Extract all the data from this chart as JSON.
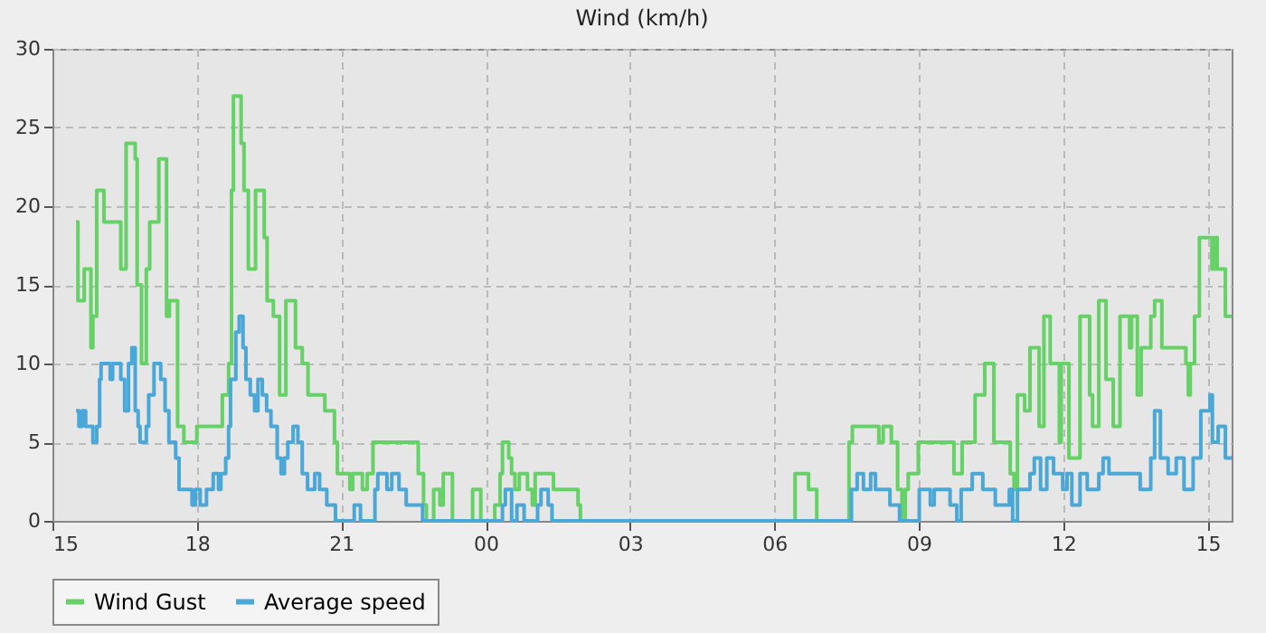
{
  "chart_data": {
    "type": "step",
    "title": "Wind (km/h)",
    "xlim": [
      15,
      39.5
    ],
    "ylim": [
      0,
      30
    ],
    "yticks": [
      0,
      5,
      10,
      15,
      20,
      25,
      30
    ],
    "xticks": [
      {
        "value": 15,
        "label": "15"
      },
      {
        "value": 18,
        "label": "18"
      },
      {
        "value": 21,
        "label": "21"
      },
      {
        "value": 24,
        "label": "00"
      },
      {
        "value": 27,
        "label": "03"
      },
      {
        "value": 30,
        "label": "06"
      },
      {
        "value": 33,
        "label": "09"
      },
      {
        "value": 36,
        "label": "12"
      },
      {
        "value": 39,
        "label": "15"
      }
    ],
    "grid": true,
    "legend": "bottom",
    "line_style": "solid",
    "marker": "none",
    "series": [
      {
        "name": "Wind Gust",
        "color": "#66d166",
        "x": [
          15.49,
          15.53,
          15.66,
          15.8,
          15.84,
          15.92,
          16.07,
          16.42,
          16.53,
          16.72,
          16.76,
          16.85,
          16.95,
          17.02,
          17.21,
          17.37,
          17.43,
          17.6,
          17.73,
          18.0,
          18.53,
          18.66,
          18.72,
          18.76,
          18.92,
          18.98,
          19.07,
          19.22,
          19.4,
          19.46,
          19.59,
          19.72,
          19.85,
          20.05,
          20.19,
          20.31,
          20.66,
          20.86,
          20.92,
          21.18,
          21.24,
          21.44,
          21.54,
          21.66,
          22.6,
          22.71,
          22.77,
          22.92,
          23.05,
          23.12,
          23.31,
          23.73,
          23.9,
          24.19,
          24.3,
          24.35,
          24.48,
          24.54,
          24.61,
          24.7,
          24.87,
          24.97,
          25.03,
          25.41,
          25.92,
          25.97,
          30.43,
          30.71,
          30.88,
          31.55,
          31.62,
          32.17,
          32.26,
          32.43,
          32.56,
          32.65,
          32.72,
          32.78,
          32.99,
          33.73,
          33.9,
          34.17,
          34.37,
          34.56,
          34.9,
          34.98,
          35.05,
          35.2,
          35.31,
          35.5,
          35.6,
          35.73,
          35.92,
          35.96,
          36.12,
          36.35,
          36.55,
          36.61,
          36.74,
          36.89,
          37.04,
          37.18,
          37.38,
          37.42,
          37.54,
          37.62,
          37.82,
          37.9,
          38.05,
          38.55,
          38.6,
          38.64,
          38.73,
          38.83,
          39.09,
          39.15,
          39.2,
          39.37,
          39.5
        ],
        "values": [
          19,
          14,
          16,
          11,
          13,
          21,
          19,
          16,
          24,
          23,
          15,
          10,
          16,
          19,
          23,
          13,
          14,
          6,
          5,
          6,
          8,
          10,
          21,
          27,
          24,
          21,
          16,
          21,
          18,
          14,
          13,
          8,
          14,
          11,
          10,
          8,
          7,
          5,
          3,
          2,
          3,
          2,
          3,
          5,
          3,
          1,
          0,
          2,
          1,
          3,
          0,
          2,
          0,
          1,
          3,
          5,
          4,
          3,
          2,
          3,
          2,
          1,
          3,
          2,
          1,
          0,
          3,
          2,
          0,
          5,
          6,
          5,
          6,
          5,
          2,
          0,
          2,
          3,
          5,
          3,
          5,
          8,
          10,
          5,
          3,
          2,
          8,
          7,
          11,
          6,
          13,
          10,
          5,
          10,
          4,
          13,
          8,
          6,
          14,
          9,
          6,
          13,
          11,
          13,
          8,
          11,
          13,
          14,
          11,
          10,
          8,
          10,
          13,
          18,
          16,
          18,
          16,
          13,
          13
        ]
      },
      {
        "name": "Average speed",
        "color": "#4aa8d8",
        "x": [
          15.49,
          15.55,
          15.62,
          15.69,
          15.84,
          15.92,
          15.98,
          16.01,
          16.2,
          16.25,
          16.42,
          16.5,
          16.58,
          16.65,
          16.72,
          16.78,
          16.82,
          16.95,
          17.0,
          17.11,
          17.25,
          17.34,
          17.42,
          17.56,
          17.63,
          17.9,
          17.97,
          18.07,
          18.2,
          18.34,
          18.45,
          18.5,
          18.6,
          18.66,
          18.7,
          18.76,
          18.81,
          18.88,
          18.96,
          19.02,
          19.11,
          19.2,
          19.27,
          19.36,
          19.45,
          19.54,
          19.67,
          19.75,
          19.82,
          19.89,
          20.0,
          20.1,
          20.19,
          20.3,
          20.45,
          20.55,
          20.7,
          20.88,
          21.27,
          21.4,
          21.7,
          21.76,
          21.95,
          22.05,
          22.2,
          22.35,
          22.69,
          24.35,
          24.41,
          24.54,
          24.65,
          24.8,
          25.08,
          25.15,
          25.3,
          25.38,
          31.6,
          31.72,
          31.85,
          32.0,
          32.1,
          32.4,
          32.6,
          33.01,
          33.24,
          33.32,
          33.65,
          33.79,
          33.88,
          34.11,
          34.33,
          34.59,
          34.63,
          34.88,
          34.95,
          35.05,
          35.31,
          35.4,
          35.53,
          35.66,
          35.8,
          35.99,
          36.08,
          36.18,
          36.35,
          36.5,
          36.74,
          36.83,
          36.95,
          37.2,
          37.6,
          37.82,
          37.9,
          38.02,
          38.18,
          38.35,
          38.51,
          38.7,
          38.86,
          39.05,
          39.1,
          39.22,
          39.37,
          39.5
        ],
        "values": [
          7,
          6,
          7,
          6,
          5,
          6,
          9,
          10,
          9,
          10,
          9,
          7,
          10,
          11,
          7,
          6,
          5,
          6,
          8,
          10,
          9,
          7,
          5,
          4,
          2,
          1,
          2,
          1,
          2,
          3,
          2,
          3,
          4,
          6,
          9,
          9,
          12,
          13,
          11,
          9,
          8,
          7,
          9,
          8,
          7,
          6,
          4,
          3,
          4,
          5,
          6,
          5,
          3,
          2,
          3,
          2,
          1,
          0,
          1,
          0,
          2,
          3,
          2,
          3,
          2,
          1,
          0,
          1,
          2,
          0,
          1,
          0,
          1,
          2,
          1,
          0,
          2,
          3,
          2,
          3,
          2,
          1,
          0,
          2,
          1,
          2,
          1,
          0,
          2,
          3,
          2,
          1,
          1,
          2,
          0,
          2,
          3,
          4,
          2,
          4,
          3,
          2,
          3,
          1,
          3,
          2,
          3,
          4,
          3,
          3,
          2,
          4,
          7,
          4,
          3,
          4,
          2,
          4,
          7,
          8,
          5,
          6,
          4,
          4
        ]
      }
    ]
  }
}
